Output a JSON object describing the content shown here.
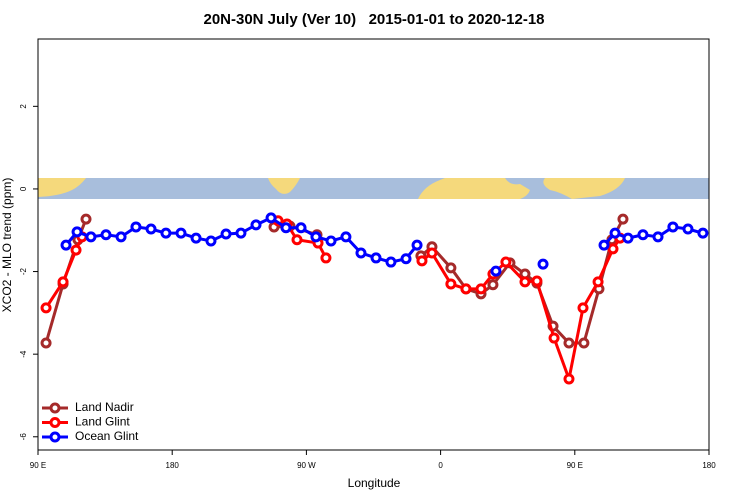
{
  "chart_data": {
    "type": "line",
    "title": "20N-30N July (Ver 10)   2015-01-01 to 2020-12-18",
    "xlabel": "Longitude",
    "ylabel": "XCO2 - MLO trend (ppm)",
    "xlim": [
      90,
      540
    ],
    "ylim": [
      -6.32,
      3.63
    ],
    "xticks": [
      {
        "value": 90,
        "label": "90 E"
      },
      180,
      {
        "value": 270,
        "label": "90 W"
      },
      {
        "value": 360,
        "label": "0"
      },
      {
        "value": 450,
        "label": "90 E"
      },
      {
        "value": 540,
        "label": "180"
      }
    ],
    "yticks": [
      -6,
      -4,
      -2,
      0,
      2
    ],
    "legend": "bottom-left",
    "series": [
      {
        "name": "Land Nadir",
        "color": "#a52a2a",
        "x": [
          95.4,
          106.8,
          116.8,
          122.2,
          null,
          248.3,
          259.0,
          277.1,
          null,
          346.8,
          354.2,
          366.9,
          377.0,
          387.1,
          395.1,
          406.5,
          416.6,
          424.6,
          435.4,
          446.1,
          456.1,
          466.2,
          474.9,
          482.3
        ],
        "values": [
          -3.73,
          -2.3,
          -1.23,
          -0.73,
          null,
          -0.92,
          -0.9,
          -1.11,
          null,
          -1.62,
          -1.4,
          -1.91,
          -2.42,
          -2.54,
          -2.32,
          -1.79,
          -2.06,
          -2.28,
          -3.32,
          -3.73,
          -3.73,
          -2.42,
          -1.23,
          -0.73
        ]
      },
      {
        "name": "Land Glint",
        "color": "#ff0000",
        "x": [
          95.4,
          106.8,
          115.5,
          119.5,
          null,
          251.0,
          257.0,
          263.7,
          277.8,
          283.1,
          null,
          347.5,
          354.2,
          366.9,
          377.0,
          387.1,
          395.1,
          403.8,
          416.6,
          424.6,
          436.1,
          446.1,
          455.5,
          465.6,
          475.6,
          480.3
        ],
        "values": [
          -2.88,
          -2.25,
          -1.48,
          -1.16,
          null,
          -0.77,
          -0.85,
          -1.23,
          -1.31,
          -1.67,
          null,
          -1.74,
          -1.55,
          -2.3,
          -2.42,
          -2.42,
          -2.06,
          -1.77,
          -2.25,
          -2.23,
          -3.61,
          -4.6,
          -2.88,
          -2.25,
          -1.45,
          -1.19
        ]
      },
      {
        "name": "Ocean Glint",
        "color": "#0000ff",
        "x": [
          108.8,
          116.2,
          125.5,
          135.6,
          145.7,
          155.7,
          165.8,
          175.8,
          185.9,
          196.0,
          206.0,
          216.1,
          226.1,
          236.2,
          246.3,
          256.3,
          266.4,
          276.4,
          286.5,
          296.5,
          306.6,
          316.7,
          326.7,
          336.8,
          344.2,
          null,
          397.1,
          null,
          428.7,
          null,
          469.6,
          477.0,
          485.7,
          495.7,
          505.8,
          515.8,
          525.9,
          535.9
        ],
        "values": [
          -1.36,
          -1.04,
          -1.16,
          -1.11,
          -1.16,
          -0.92,
          -0.97,
          -1.07,
          -1.07,
          -1.19,
          -1.26,
          -1.09,
          -1.07,
          -0.87,
          -0.7,
          -0.94,
          -0.94,
          -1.16,
          -1.26,
          -1.16,
          -1.55,
          -1.67,
          -1.77,
          -1.69,
          -1.36,
          null,
          -1.99,
          null,
          -1.82,
          null,
          -1.36,
          -1.07,
          -1.19,
          -1.11,
          -1.16,
          -0.92,
          -0.97,
          -1.07
        ]
      }
    ]
  }
}
